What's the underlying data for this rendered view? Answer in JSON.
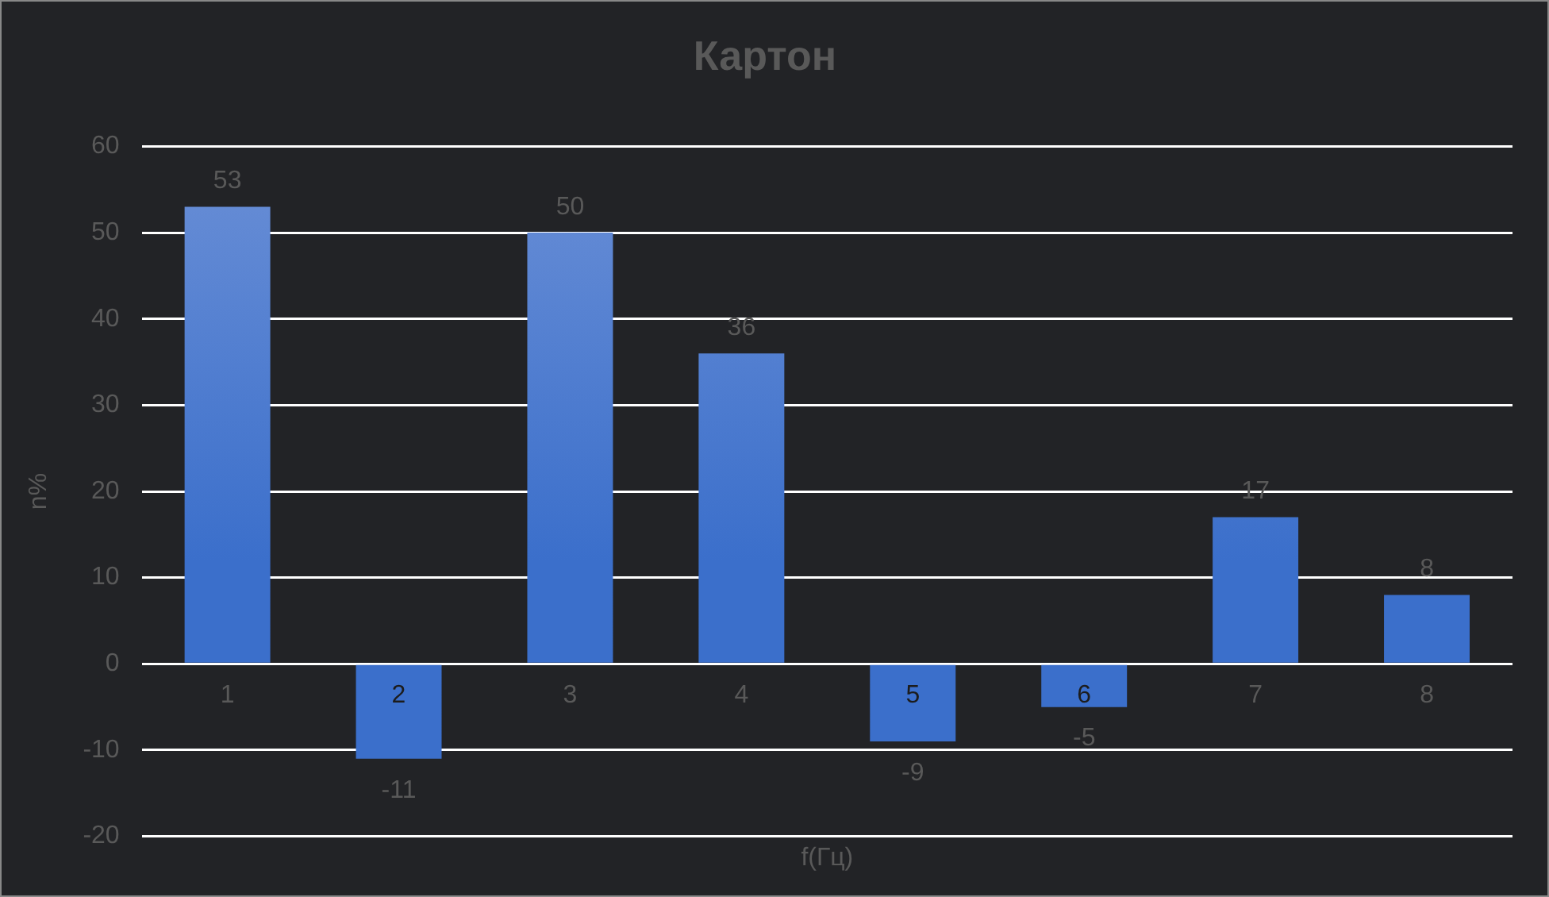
{
  "chart_data": {
    "type": "bar",
    "title": "Картон",
    "xlabel": "f(Гц)",
    "ylabel": "n%",
    "categories": [
      "1",
      "2",
      "3",
      "4",
      "5",
      "6",
      "7",
      "8"
    ],
    "values": [
      53,
      -11,
      50,
      36,
      -9,
      -5,
      17,
      8
    ],
    "color": "#3b6fcb",
    "ylim": [
      -20,
      60
    ],
    "yticks": [
      -20,
      -10,
      0,
      10,
      20,
      30,
      40,
      50,
      60
    ],
    "grid": "y",
    "data_labels": true,
    "legend": false
  }
}
